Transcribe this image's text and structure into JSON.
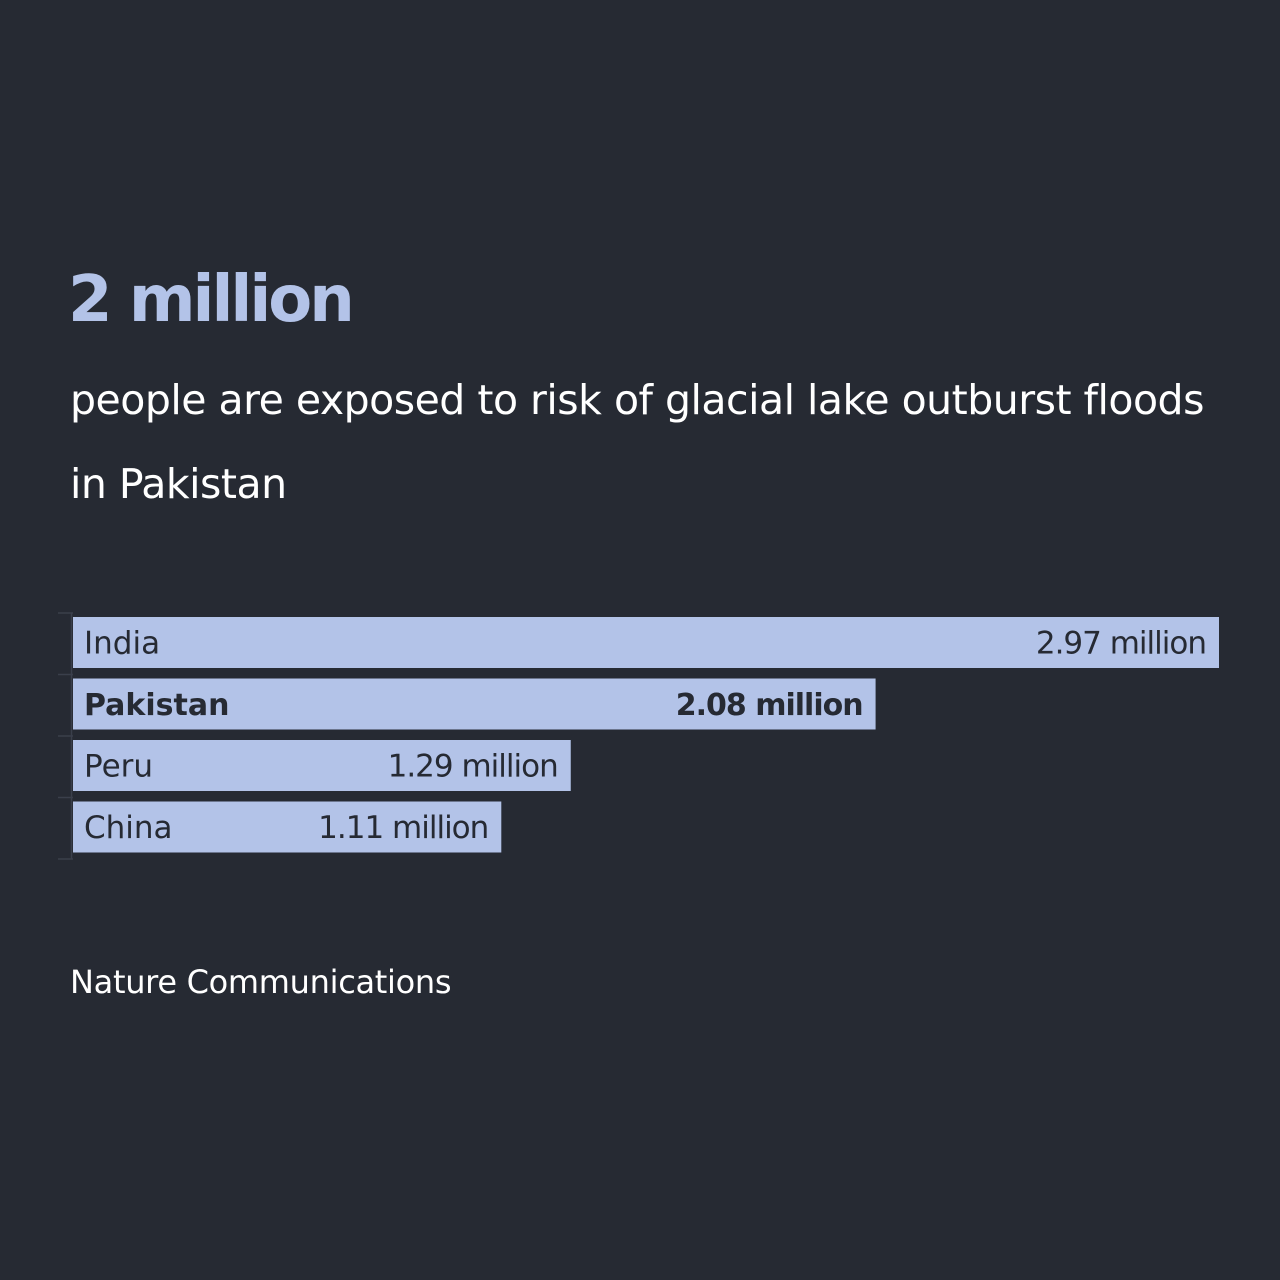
{
  "headline": "2 million",
  "subheadline": "people are exposed to risk of glacial lake outburst floods in Pakistan",
  "source": "Nature Communications",
  "colors": {
    "background": "#262a33",
    "bar": "#b3c3e8",
    "bar_text": "#262a33",
    "headline": "#b3c3e8",
    "body_text": "#ffffff",
    "axis_line": "#3a3f4b"
  },
  "chart_data": {
    "type": "bar",
    "orientation": "horizontal",
    "title": "",
    "xlabel": "",
    "ylabel": "",
    "grid": false,
    "legend": "none",
    "xlim": [
      0,
      2.97
    ],
    "categories": [
      "India",
      "Pakistan",
      "Peru",
      "China"
    ],
    "values": [
      2.97,
      2.08,
      1.29,
      1.11
    ],
    "value_labels": [
      "2.97 million",
      "2.08 million",
      "1.29 million",
      "1.11 million"
    ],
    "highlighted": "Pakistan"
  }
}
